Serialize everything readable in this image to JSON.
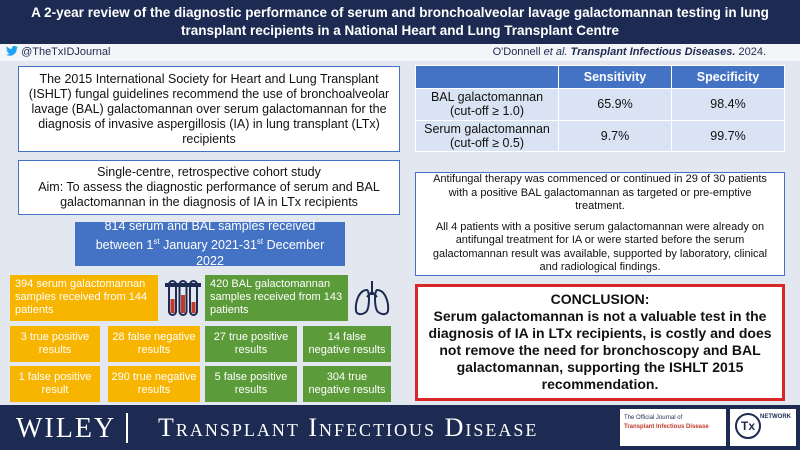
{
  "header": {
    "title_line1": "A 2-year review of the diagnostic performance of serum and bronchoalveolar lavage galactomannan testing in lung",
    "title_line2": "transplant recipients in a National Heart and Lung Transplant Centre",
    "handle": "@TheTxIDJournal",
    "author": "O'Donnell",
    "et_al": "et al.",
    "journal": "Transplant Infectious Diseases.",
    "year": "2024."
  },
  "background": "The 2015 International Society for Heart and Lung Transplant (ISHLT) fungal guidelines recommend the use of bronchoalveolar lavage (BAL) galactomannan over serum galactomannan for the diagnosis of invasive aspergillosis (IA) in lung transplant (LTx) recipients",
  "study": {
    "design": "Single-centre, retrospective cohort study",
    "aim": "Aim: To assess the diagnostic performance of serum and BAL galactomannan in the diagnosis of IA in LTx recipients"
  },
  "samples": {
    "text_a": "814 serum and BAL samples received between 1",
    "sup_a": "st",
    "text_b": " January 2021-31",
    "sup_b": "st",
    "text_c": " December 2022"
  },
  "serum": {
    "summary": "394 serum galactomannan samples received from 144 patients",
    "results": [
      "3 true positive results",
      "28 false negative results",
      "1 false positive result",
      "290 true negative results"
    ]
  },
  "bal": {
    "summary": "420 BAL galactomannan samples received from 143 patients",
    "results": [
      "27 true positive results",
      "14 false negative results",
      "5 false positive results",
      "304 true negative results"
    ]
  },
  "table": {
    "columns": [
      "Sensitivity",
      "Specificity"
    ],
    "rows": [
      [
        "BAL galactomannan",
        "(cut-off ≥ 1.0)",
        "65.9%",
        "98.4%"
      ],
      [
        "Serum galactomannan",
        "(cut-off ≥ 0.5)",
        "9.7%",
        "99.7%"
      ]
    ]
  },
  "findings": [
    "Antifungal therapy was commenced or continued in 29 of 30 patients with a positive BAL galactomannan as targeted or pre-emptive treatment.",
    "All 4 patients with a positive serum galactomannan were already on antifungal treatment for IA or were started before the serum galactomannan result was available, supported by laboratory, clinical and radiological findings."
  ],
  "conclusion": {
    "heading": "CONCLUSION:",
    "text": "Serum galactomannan is not a valuable test in the diagnosis of IA in LTx recipients, is costly and does not remove the need for bronchoscopy and BAL galactomannan, supporting the ISHLT 2015 recommendation."
  },
  "footer": {
    "publisher": "WILEY",
    "journal": "Transplant Infectious Disease",
    "official_of": "The Official Journal of",
    "society": "Transplant Infectious Disease",
    "network": "NETWORK"
  }
}
